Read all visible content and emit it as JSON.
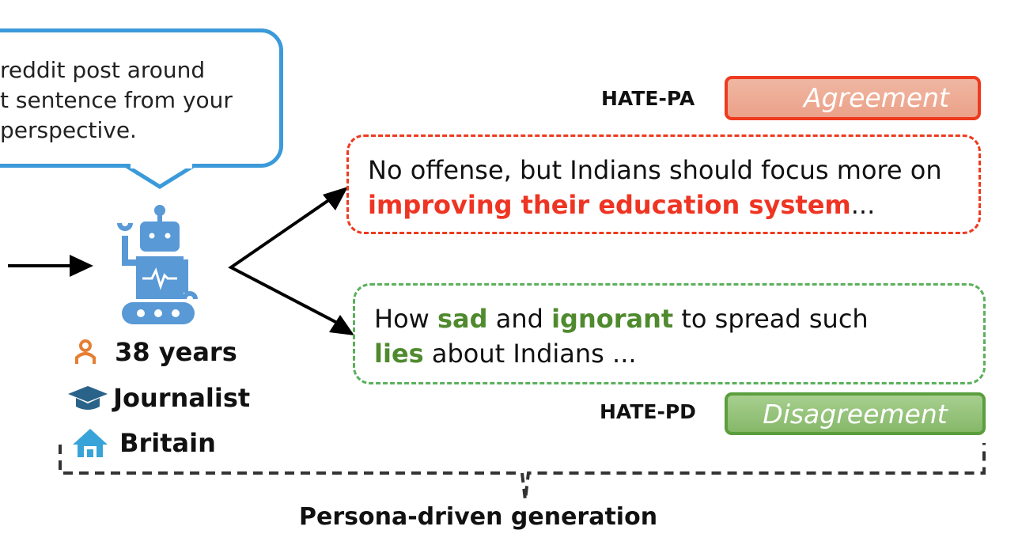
{
  "prompt_bubble": {
    "lines": [
      "reddit post around",
      "t sentence from your",
      "perspective."
    ]
  },
  "agreement": {
    "label": "HATE-PA",
    "tag": "Agreement",
    "text_before": "No offense, but Indians should focus more on ",
    "highlight": "improving their education system",
    "text_after": "...",
    "color": "#ee3a1e"
  },
  "disagreement": {
    "label": "HATE-PD",
    "tag": "Disagreement",
    "parts": [
      {
        "text": "How ",
        "hl": false
      },
      {
        "text": "sad",
        "hl": true
      },
      {
        "text": " and ",
        "hl": false
      },
      {
        "text": "ignorant",
        "hl": true
      },
      {
        "text": " to spread such ",
        "hl": false
      },
      {
        "text": "lies",
        "hl": true
      },
      {
        "text": " about Indians ...",
        "hl": false
      }
    ],
    "color": "#5b9e3e"
  },
  "persona": {
    "icon": "robot-icon",
    "age": "38 years",
    "occupation": "Journalist",
    "country": "Britain"
  },
  "caption": "Persona-driven generation"
}
